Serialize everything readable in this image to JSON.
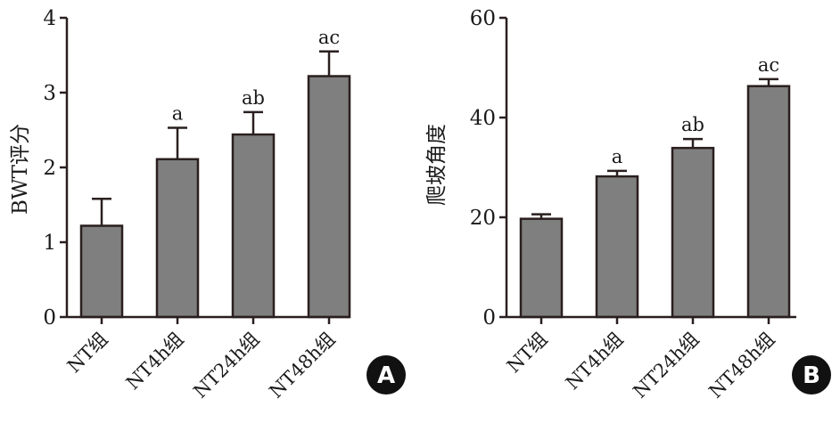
{
  "chart_data": [
    {
      "type": "bar",
      "panel_label": "A",
      "title": "",
      "xlabel": "",
      "ylabel": "BWT评分",
      "ylim": [
        0,
        4
      ],
      "yticks": [
        0,
        1,
        2,
        3,
        4
      ],
      "categories": [
        "NT组",
        "NT4h组",
        "NT24h组",
        "NT48h组"
      ],
      "values": [
        1.22,
        2.11,
        2.44,
        3.22
      ],
      "errors": [
        0.36,
        0.42,
        0.3,
        0.33
      ],
      "significance": [
        "",
        "a",
        "ab",
        "ac"
      ],
      "bar_color": "#7f7f7f"
    },
    {
      "type": "bar",
      "panel_label": "B",
      "title": "",
      "xlabel": "",
      "ylabel": "爬坡角度",
      "ylim": [
        0,
        60
      ],
      "yticks": [
        0,
        20,
        40,
        60
      ],
      "categories": [
        "NT组",
        "NT4h组",
        "NT24h组",
        "NT48h组"
      ],
      "values": [
        19.7,
        28.2,
        33.9,
        46.3
      ],
      "errors": [
        0.9,
        1.1,
        1.8,
        1.4
      ],
      "significance": [
        "",
        "a",
        "ab",
        "ac"
      ],
      "bar_color": "#7f7f7f"
    }
  ]
}
